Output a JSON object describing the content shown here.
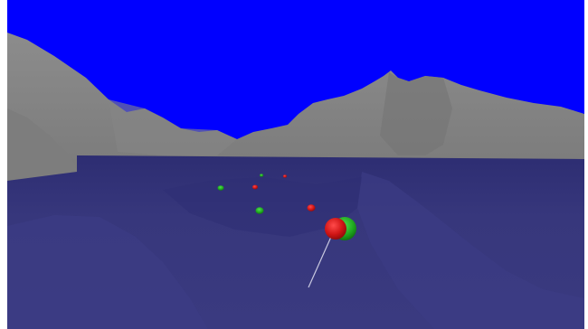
{
  "scene": {
    "description_colors": {
      "sky": "#0000ff",
      "mountain": "#808080",
      "mountain_shadow": "#6a6a6a",
      "water": "#35357a",
      "water_deep": "#2c2c70",
      "border": "#ffffff"
    },
    "entities": {
      "player_red_sphere_color": "#dd1818",
      "player_green_sphere_color": "#1fa81f",
      "aim_line_color": "#c8c8e0",
      "pickup_red_color": "#cc2020",
      "pickup_green_color": "#20b020"
    }
  }
}
